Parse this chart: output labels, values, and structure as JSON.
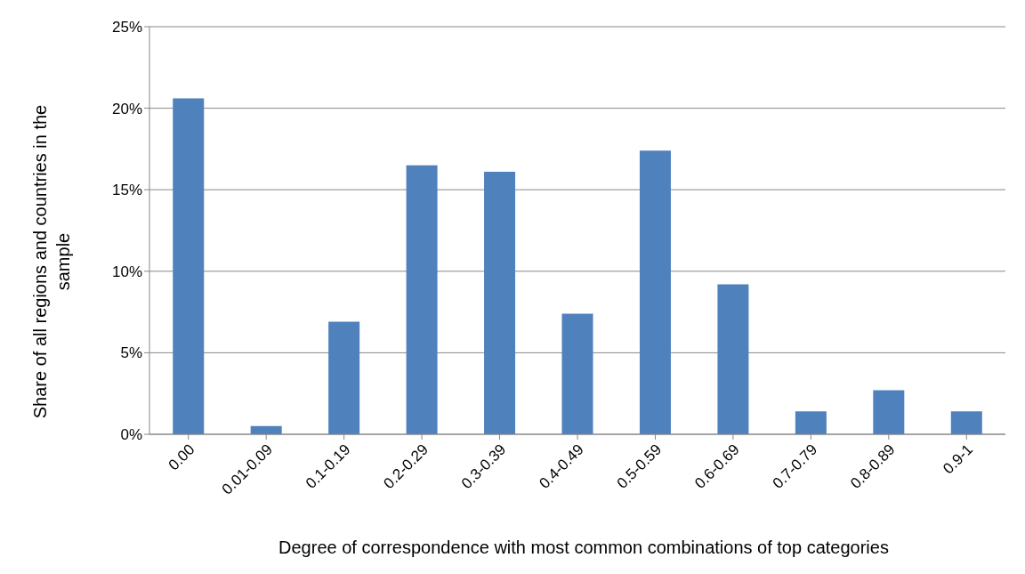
{
  "chart_data": {
    "type": "bar",
    "xlabel": "Degree of correspondence with most common combinations of top categories",
    "ylabel": "Share of all regions and countries in the sample",
    "categories": [
      "0.00",
      "0.01-0.09",
      "0.1-0.19",
      "0.2-0.29",
      "0.3-0.39",
      "0.4-0.49",
      "0.5-0.59",
      "0.6-0.69",
      "0.7-0.79",
      "0.8-0.89",
      "0.9-1"
    ],
    "values": [
      20.6,
      0.5,
      6.9,
      16.5,
      16.1,
      7.4,
      17.4,
      9.2,
      1.4,
      2.7,
      1.4
    ],
    "color": "#4f81bd",
    "ylim": [
      0,
      25
    ],
    "yticks": [
      {
        "value": 0,
        "label": "0%"
      },
      {
        "value": 5,
        "label": "5%"
      },
      {
        "value": 10,
        "label": "10%"
      },
      {
        "value": 15,
        "label": "15%"
      },
      {
        "value": 20,
        "label": "20%"
      },
      {
        "value": 25,
        "label": "25%"
      }
    ],
    "grid": "y",
    "legend": false
  }
}
